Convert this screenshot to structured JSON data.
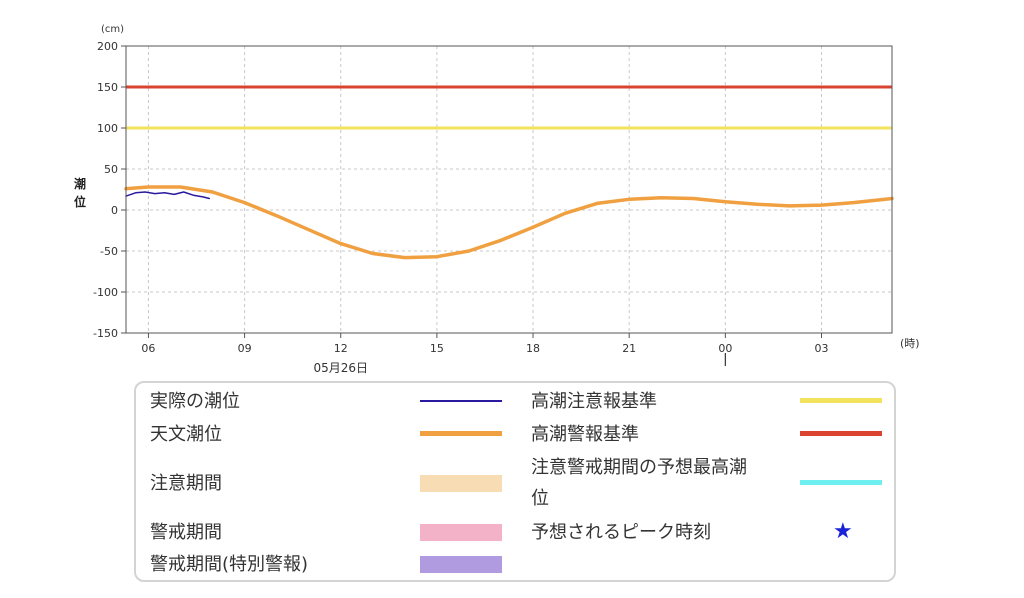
{
  "chart_data": {
    "type": "line",
    "yunit": "(cm)",
    "ylabel": "潮位",
    "xunit": "(時)",
    "ylim": [
      -150,
      200
    ],
    "yticks": [
      200,
      150,
      100,
      50,
      0,
      -50,
      -100,
      -150
    ],
    "xrange_hours": [
      5.3,
      29.2
    ],
    "xticks": [
      {
        "hour": 6,
        "label": "06"
      },
      {
        "hour": 9,
        "label": "09"
      },
      {
        "hour": 12,
        "label": "12"
      },
      {
        "hour": 15,
        "label": "15"
      },
      {
        "hour": 18,
        "label": "18"
      },
      {
        "hour": 21,
        "label": "21"
      },
      {
        "hour": 24,
        "label": "00"
      },
      {
        "hour": 27,
        "label": "03"
      }
    ],
    "date_label": "05月26日",
    "grid": true,
    "thresholds": [
      {
        "name": "高潮警報基準",
        "value": 150,
        "color": "#d9432f"
      },
      {
        "name": "高潮注意報基準",
        "value": 100,
        "color": "#f2e25c"
      }
    ],
    "series": [
      {
        "name": "天文潮位",
        "color": "#f0a040",
        "x": [
          5.3,
          6,
          7,
          8,
          9,
          10,
          11,
          12,
          13,
          14,
          15,
          16,
          17,
          18,
          19,
          20,
          21,
          22,
          23,
          24,
          25,
          26,
          27,
          28,
          29.2
        ],
        "values": [
          26,
          28,
          28,
          22,
          9,
          -7,
          -24,
          -41,
          -53,
          -58,
          -57,
          -50,
          -37,
          -21,
          -4,
          8,
          13,
          15,
          14,
          10,
          7,
          5,
          6,
          9,
          14
        ]
      },
      {
        "name": "実際の潮位",
        "color": "#2a1aa0",
        "x": [
          5.3,
          5.6,
          5.9,
          6.2,
          6.5,
          6.8,
          7.1,
          7.4,
          7.7,
          7.9
        ],
        "values": [
          17,
          21,
          22,
          20,
          21,
          19,
          22,
          18,
          16,
          14
        ]
      }
    ]
  },
  "legend": {
    "actual": "実際の潮位",
    "astro": "天文潮位",
    "caution_period": "注意期間",
    "warning_period": "警戒期間",
    "special_period": "警戒期間(特別警報)",
    "advisory_standard": "高潮注意報基準",
    "warning_standard": "高潮警報基準",
    "forecast_max_line1": "注意警戒期間の予想最高潮",
    "forecast_max_line2": "位",
    "peak_time": "予想されるピーク時刻",
    "star": "★"
  },
  "colors": {
    "actual": "#2a1aa0",
    "astro": "#f0a040",
    "caution": "#f7dcb4",
    "warning": "#f4b2c8",
    "special": "#b09ae0",
    "advisory_line": "#f2e25c",
    "warning_line": "#d9432f",
    "forecast_max": "#6ef0f0",
    "star": "#1a23d8"
  }
}
